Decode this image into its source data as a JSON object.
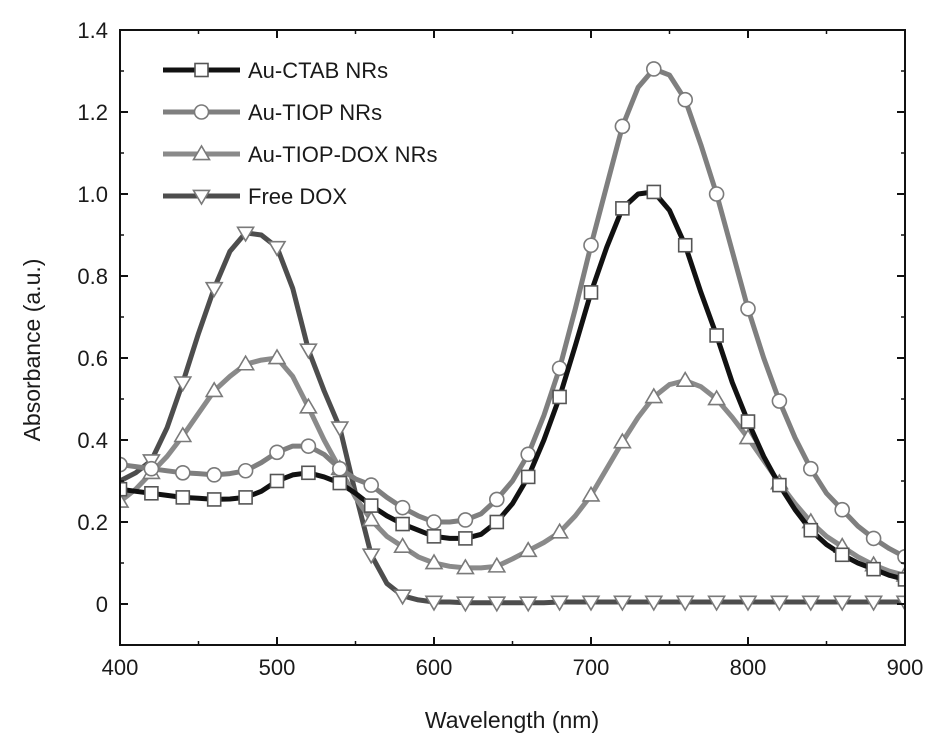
{
  "chart_data": {
    "type": "line",
    "xlabel": "Wavelength (nm)",
    "ylabel": "Absorbance  (a.u.)",
    "xlim": [
      400,
      900
    ],
    "ylim": [
      -0.1,
      1.4
    ],
    "xticks": [
      "400",
      "500",
      "600",
      "700",
      "800",
      "900"
    ],
    "xtick_values": [
      400,
      500,
      600,
      700,
      800,
      900
    ],
    "yticks": [
      "0",
      "0.2",
      "0.4",
      "0.6",
      "0.8",
      "1.0",
      "1.2",
      "1.4"
    ],
    "ytick_values": [
      0,
      0.2,
      0.4,
      0.6,
      0.8,
      1.0,
      1.2,
      1.4
    ],
    "grid": false,
    "legend_position": "top-left",
    "series": [
      {
        "name": "Au-CTAB NRs",
        "color": "#111111",
        "marker": "square",
        "x": [
          400,
          410,
          420,
          430,
          440,
          450,
          460,
          470,
          480,
          490,
          500,
          510,
          520,
          530,
          540,
          550,
          560,
          570,
          580,
          590,
          600,
          610,
          620,
          630,
          640,
          650,
          660,
          670,
          680,
          690,
          700,
          710,
          720,
          730,
          740,
          750,
          760,
          770,
          780,
          790,
          800,
          810,
          820,
          830,
          840,
          850,
          860,
          870,
          880,
          890,
          900
        ],
        "y": [
          0.28,
          0.275,
          0.27,
          0.265,
          0.26,
          0.258,
          0.255,
          0.256,
          0.26,
          0.275,
          0.3,
          0.315,
          0.32,
          0.31,
          0.295,
          0.27,
          0.24,
          0.215,
          0.195,
          0.18,
          0.165,
          0.16,
          0.16,
          0.17,
          0.2,
          0.245,
          0.31,
          0.4,
          0.505,
          0.63,
          0.76,
          0.87,
          0.965,
          1.0,
          1.005,
          0.96,
          0.875,
          0.76,
          0.655,
          0.54,
          0.445,
          0.36,
          0.29,
          0.23,
          0.18,
          0.145,
          0.12,
          0.1,
          0.085,
          0.07,
          0.06
        ],
        "marker_x": [
          400,
          420,
          440,
          460,
          480,
          500,
          520,
          540,
          560,
          580,
          600,
          620,
          640,
          660,
          680,
          700,
          720,
          740,
          760,
          780,
          800,
          820,
          840,
          860,
          880,
          900
        ]
      },
      {
        "name": "Au-TIOP NRs",
        "color": "#7f7f7f",
        "marker": "circle",
        "x": [
          400,
          410,
          420,
          430,
          440,
          450,
          460,
          470,
          480,
          490,
          500,
          510,
          520,
          530,
          540,
          550,
          560,
          570,
          580,
          590,
          600,
          610,
          620,
          630,
          640,
          650,
          660,
          670,
          680,
          690,
          700,
          710,
          720,
          730,
          740,
          750,
          760,
          770,
          780,
          790,
          800,
          810,
          820,
          830,
          840,
          850,
          860,
          870,
          880,
          890,
          900
        ],
        "y": [
          0.34,
          0.335,
          0.33,
          0.325,
          0.32,
          0.318,
          0.315,
          0.318,
          0.325,
          0.345,
          0.37,
          0.385,
          0.385,
          0.365,
          0.33,
          0.305,
          0.29,
          0.26,
          0.235,
          0.215,
          0.2,
          0.2,
          0.205,
          0.22,
          0.255,
          0.3,
          0.365,
          0.46,
          0.575,
          0.72,
          0.875,
          1.02,
          1.165,
          1.26,
          1.305,
          1.29,
          1.23,
          1.12,
          1.0,
          0.86,
          0.72,
          0.6,
          0.495,
          0.405,
          0.33,
          0.27,
          0.23,
          0.19,
          0.16,
          0.135,
          0.115
        ],
        "marker_x": [
          400,
          420,
          440,
          460,
          480,
          500,
          520,
          540,
          560,
          580,
          600,
          620,
          640,
          660,
          680,
          700,
          720,
          740,
          760,
          780,
          800,
          820,
          840,
          860,
          880,
          900
        ]
      },
      {
        "name": "Au-TIOP-DOX NRs",
        "color": "#8a8a8a",
        "marker": "triangle-up",
        "x": [
          400,
          410,
          420,
          430,
          440,
          450,
          460,
          470,
          480,
          490,
          500,
          510,
          520,
          530,
          540,
          550,
          560,
          570,
          580,
          590,
          600,
          610,
          620,
          630,
          640,
          650,
          660,
          670,
          680,
          690,
          700,
          710,
          720,
          730,
          740,
          750,
          760,
          770,
          780,
          790,
          800,
          810,
          820,
          830,
          840,
          850,
          860,
          870,
          880,
          890,
          900
        ],
        "y": [
          0.25,
          0.28,
          0.32,
          0.36,
          0.41,
          0.465,
          0.52,
          0.555,
          0.585,
          0.595,
          0.6,
          0.555,
          0.48,
          0.4,
          0.33,
          0.26,
          0.205,
          0.165,
          0.14,
          0.115,
          0.1,
          0.092,
          0.088,
          0.088,
          0.092,
          0.11,
          0.13,
          0.15,
          0.175,
          0.215,
          0.265,
          0.33,
          0.395,
          0.455,
          0.505,
          0.535,
          0.545,
          0.53,
          0.5,
          0.455,
          0.405,
          0.35,
          0.295,
          0.245,
          0.2,
          0.165,
          0.14,
          0.115,
          0.095,
          0.08,
          0.07
        ],
        "marker_x": [
          400,
          420,
          440,
          460,
          480,
          500,
          520,
          540,
          560,
          580,
          600,
          620,
          640,
          660,
          680,
          700,
          720,
          740,
          760,
          780,
          800,
          820,
          840,
          860,
          880,
          900
        ]
      },
      {
        "name": "Free DOX",
        "color": "#4d4d4d",
        "marker": "triangle-down",
        "x": [
          400,
          410,
          420,
          430,
          440,
          450,
          460,
          470,
          480,
          490,
          500,
          510,
          520,
          530,
          540,
          550,
          560,
          570,
          580,
          590,
          600,
          610,
          620,
          630,
          640,
          650,
          660,
          670,
          680,
          690,
          700,
          710,
          720,
          730,
          740,
          750,
          760,
          770,
          780,
          790,
          800,
          810,
          820,
          830,
          840,
          850,
          860,
          870,
          880,
          890,
          900
        ],
        "y": [
          0.3,
          0.32,
          0.35,
          0.43,
          0.54,
          0.66,
          0.77,
          0.86,
          0.905,
          0.9,
          0.87,
          0.77,
          0.62,
          0.52,
          0.43,
          0.27,
          0.12,
          0.05,
          0.02,
          0.01,
          0.005,
          0.005,
          0.003,
          0.003,
          0.003,
          0.003,
          0.003,
          0.003,
          0.005,
          0.005,
          0.005,
          0.005,
          0.005,
          0.005,
          0.005,
          0.005,
          0.005,
          0.005,
          0.005,
          0.005,
          0.005,
          0.005,
          0.005,
          0.005,
          0.005,
          0.005,
          0.005,
          0.005,
          0.005,
          0.005,
          0.005
        ],
        "marker_x": [
          420,
          440,
          460,
          480,
          500,
          520,
          540,
          560,
          580,
          600,
          620,
          640,
          660,
          680,
          700,
          720,
          740,
          760,
          780,
          800,
          820,
          840,
          860,
          880,
          900
        ]
      }
    ]
  }
}
